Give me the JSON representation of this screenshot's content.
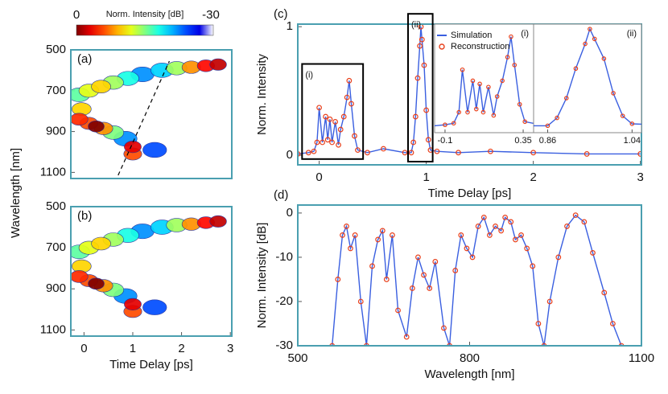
{
  "chart_data": [
    {
      "type": "heatmap",
      "label": "(a)",
      "ylabel": "Wavelength [nm]",
      "xlim": [
        -0.27,
        3.03
      ],
      "ylim": [
        1130,
        500
      ],
      "yticks": [
        500,
        700,
        900,
        1100
      ],
      "colorbar": {
        "label": "Norm. Intensity [dB]",
        "ticks": [
          0,
          -30
        ]
      },
      "x": [
        1.6,
        1.9,
        2.2,
        2.5,
        2.75,
        -0.1,
        0.1,
        0.35,
        0.6,
        0.9,
        1.2,
        -0.05,
        -0.1,
        0.1,
        0.25,
        0.4,
        0.6,
        0.85,
        1.0,
        1.0,
        1.45
      ],
      "y": [
        600,
        590,
        585,
        578,
        572,
        720,
        700,
        680,
        660,
        640,
        620,
        790,
        840,
        860,
        875,
        885,
        905,
        935,
        975,
        1010,
        990
      ],
      "values": [
        -20,
        -14,
        -8,
        -4,
        -2,
        -16,
        -12,
        -10,
        -14,
        -18,
        -22,
        -10,
        -5,
        -6,
        0,
        -8,
        -15,
        -22,
        -3,
        -6,
        -24
      ]
    },
    {
      "type": "heatmap",
      "label": "(b)",
      "xlabel": "Time Delay [ps]",
      "xlim": [
        -0.27,
        3.03
      ],
      "ylim": [
        1130,
        500
      ],
      "xticks": [
        0,
        1,
        2,
        3
      ],
      "yticks": [
        500,
        700,
        900,
        1100
      ],
      "x": [
        1.6,
        1.9,
        2.2,
        2.5,
        2.75,
        -0.1,
        0.1,
        0.35,
        0.6,
        0.9,
        1.2,
        -0.05,
        -0.1,
        0.1,
        0.25,
        0.4,
        0.6,
        0.85,
        1.0,
        1.0,
        1.45
      ],
      "y": [
        600,
        590,
        585,
        578,
        572,
        720,
        700,
        680,
        660,
        640,
        620,
        790,
        840,
        860,
        875,
        885,
        905,
        935,
        975,
        1010,
        990
      ],
      "values": [
        -20,
        -14,
        -8,
        -4,
        -2,
        -16,
        -12,
        -10,
        -14,
        -18,
        -22,
        -10,
        -5,
        -6,
        0,
        -8,
        -15,
        -22,
        -3,
        -6,
        -24
      ]
    },
    {
      "type": "line",
      "label": "(c)",
      "xlabel": "Time Delay [ps]",
      "ylabel": "Norm. Intensity",
      "xlim": [
        -0.2,
        3.01
      ],
      "ylim": [
        -0.075,
        1.02
      ],
      "xticks": [
        0,
        1,
        2,
        3
      ],
      "yticks": [
        0,
        1
      ],
      "x": [
        -0.2,
        -0.1,
        -0.05,
        -0.02,
        0,
        0.03,
        0.06,
        0.08,
        0.1,
        0.12,
        0.15,
        0.18,
        0.2,
        0.23,
        0.26,
        0.28,
        0.3,
        0.33,
        0.36,
        0.45,
        0.6,
        0.8,
        0.86,
        0.88,
        0.9,
        0.92,
        0.94,
        0.95,
        0.96,
        0.98,
        1.0,
        1.02,
        1.04,
        1.1,
        1.3,
        1.6,
        2.0,
        2.5,
        3.0
      ],
      "series": [
        {
          "name": "Simulation",
          "color": "#3a5fe0",
          "marker": "line",
          "values": [
            0.01,
            0.02,
            0.03,
            0.1,
            0.37,
            0.1,
            0.3,
            0.12,
            0.28,
            0.1,
            0.26,
            0.08,
            0.2,
            0.3,
            0.45,
            0.58,
            0.4,
            0.15,
            0.04,
            0.02,
            0.05,
            0.02,
            0.02,
            0.1,
            0.3,
            0.6,
            0.85,
            1.0,
            0.9,
            0.7,
            0.35,
            0.12,
            0.04,
            0.03,
            0.02,
            0.03,
            0.02,
            0.01,
            0.01
          ]
        },
        {
          "name": "Reconstruction",
          "color": "#e8401c",
          "marker": "circle",
          "values": [
            0.01,
            0.02,
            0.03,
            0.1,
            0.37,
            0.1,
            0.3,
            0.12,
            0.28,
            0.1,
            0.26,
            0.08,
            0.2,
            0.3,
            0.45,
            0.58,
            0.4,
            0.15,
            0.04,
            0.02,
            0.05,
            0.02,
            0.02,
            0.1,
            0.3,
            0.6,
            0.85,
            1.0,
            0.9,
            0.7,
            0.35,
            0.12,
            0.04,
            0.03,
            0.02,
            0.03,
            0.02,
            0.01,
            0.01
          ]
        }
      ],
      "insets": [
        {
          "label": "(i)",
          "xlim": [
            -0.16,
            0.41
          ],
          "ylim": [
            -0.03,
            0.66
          ],
          "xticks": [
            -0.1,
            0.35
          ]
        },
        {
          "label": "(ii)",
          "xlim": [
            0.83,
            1.06
          ],
          "ylim": [
            -0.05,
            1.05
          ],
          "xticks": [
            0.86,
            1.04
          ]
        }
      ]
    },
    {
      "type": "line",
      "label": "(d)",
      "xlabel": "Wavelength [nm]",
      "ylabel": "Norm. Intensity [dB]",
      "xlim": [
        500,
        1100
      ],
      "ylim": [
        -30,
        1.8
      ],
      "xticks": [
        500,
        800,
        1100
      ],
      "yticks": [
        0,
        -10,
        -20,
        -30
      ],
      "x": [
        560,
        570,
        578,
        585,
        592,
        600,
        610,
        620,
        630,
        640,
        648,
        655,
        665,
        675,
        690,
        700,
        710,
        720,
        730,
        740,
        755,
        765,
        775,
        785,
        795,
        805,
        815,
        825,
        835,
        845,
        855,
        862,
        872,
        880,
        890,
        900,
        910,
        920,
        930,
        940,
        955,
        970,
        985,
        1000,
        1015,
        1035,
        1050,
        1065
      ],
      "series": [
        {
          "color": "#3a5fe0",
          "marker": "line",
          "values": [
            -30,
            -15,
            -5,
            -3,
            -8,
            -5,
            -20,
            -30,
            -12,
            -6,
            -4,
            -15,
            -5,
            -22,
            -28,
            -17,
            -10,
            -14,
            -17,
            -11,
            -26,
            -30,
            -13,
            -5,
            -8,
            -10,
            -3,
            -1,
            -5,
            -3,
            -4,
            -1,
            -2,
            -6,
            -5,
            -8,
            -12,
            -25,
            -30,
            -20,
            -10,
            -3,
            -0.5,
            -2,
            -9,
            -18,
            -25,
            -30
          ]
        },
        {
          "color": "#e8401c",
          "marker": "circle",
          "values": [
            -30,
            -15,
            -5,
            -3,
            -8,
            -5,
            -20,
            -30,
            -12,
            -6,
            -4,
            -15,
            -5,
            -22,
            -28,
            -17,
            -10,
            -14,
            -17,
            -11,
            -26,
            -30,
            -13,
            -5,
            -8,
            -10,
            -3,
            -1,
            -5,
            -3,
            -4,
            -1,
            -2,
            -6,
            -5,
            -8,
            -12,
            -25,
            -30,
            -20,
            -10,
            -3,
            -0.5,
            -2,
            -9,
            -18,
            -25,
            -30
          ]
        }
      ]
    }
  ]
}
